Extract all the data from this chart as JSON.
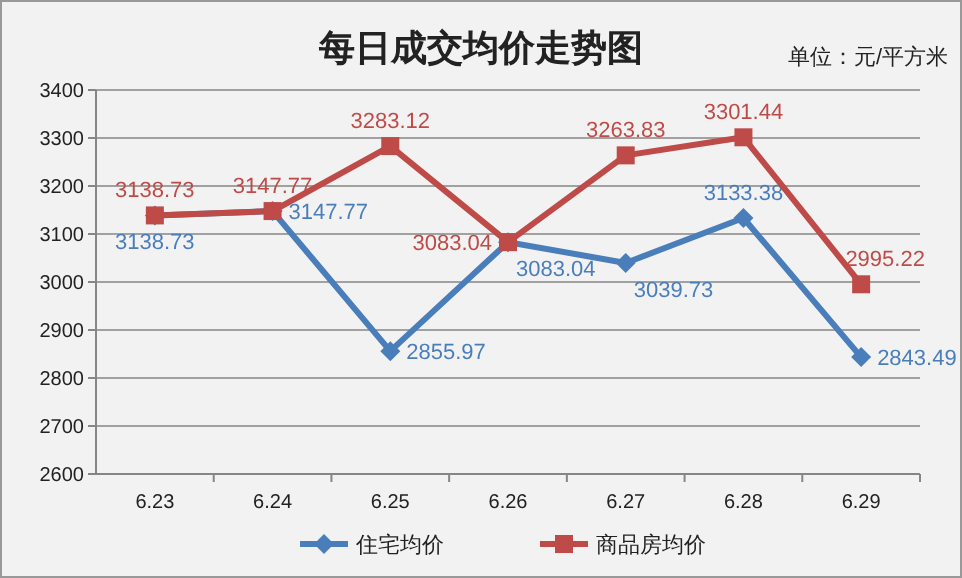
{
  "chart_data": {
    "type": "line",
    "title": "每日成交均价走势图",
    "annotations": [
      "单位：元/平方米"
    ],
    "categories": [
      "6.23",
      "6.24",
      "6.25",
      "6.26",
      "6.27",
      "6.28",
      "6.29"
    ],
    "series": [
      {
        "name": "住宅均价",
        "color": "#4a7ebb",
        "marker": "diamond",
        "values": [
          3138.73,
          3147.77,
          2855.97,
          3083.04,
          3039.73,
          3133.38,
          2843.49
        ]
      },
      {
        "name": "商品房均价",
        "color": "#be4b48",
        "marker": "square",
        "values": [
          3138.73,
          3147.77,
          3283.12,
          3083.04,
          3263.83,
          3301.44,
          2995.22
        ]
      }
    ],
    "ylim": [
      2600,
      3400
    ],
    "yticks": [
      2600,
      2700,
      2800,
      2900,
      3000,
      3100,
      3200,
      3300,
      3400
    ],
    "grid": "y",
    "legend": "bottom",
    "data_labels": true,
    "line_style": "solid"
  }
}
